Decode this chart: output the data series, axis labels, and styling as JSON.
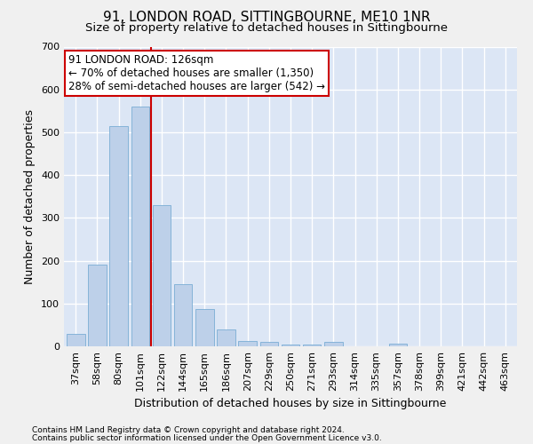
{
  "title": "91, LONDON ROAD, SITTINGBOURNE, ME10 1NR",
  "subtitle": "Size of property relative to detached houses in Sittingbourne",
  "xlabel": "Distribution of detached houses by size in Sittingbourne",
  "ylabel": "Number of detached properties",
  "footer1": "Contains HM Land Registry data © Crown copyright and database right 2024.",
  "footer2": "Contains public sector information licensed under the Open Government Licence v3.0.",
  "categories": [
    "37sqm",
    "58sqm",
    "80sqm",
    "101sqm",
    "122sqm",
    "144sqm",
    "165sqm",
    "186sqm",
    "207sqm",
    "229sqm",
    "250sqm",
    "271sqm",
    "293sqm",
    "314sqm",
    "335sqm",
    "357sqm",
    "378sqm",
    "399sqm",
    "421sqm",
    "442sqm",
    "463sqm"
  ],
  "values": [
    30,
    190,
    515,
    560,
    330,
    145,
    87,
    40,
    13,
    10,
    5,
    5,
    10,
    0,
    0,
    7,
    0,
    0,
    0,
    0,
    0
  ],
  "bar_color": "#bdd0e9",
  "bar_edge_color": "#7aadd4",
  "figure_bg": "#f0f0f0",
  "axes_bg": "#dce6f5",
  "grid_color": "#ffffff",
  "vline_color": "#cc0000",
  "vline_x_index": 3.5,
  "annotation_text": "91 LONDON ROAD: 126sqm\n← 70% of detached houses are smaller (1,350)\n28% of semi-detached houses are larger (542) →",
  "annotation_box_facecolor": "#ffffff",
  "annotation_box_edgecolor": "#cc0000",
  "ylim": [
    0,
    700
  ],
  "yticks": [
    0,
    100,
    200,
    300,
    400,
    500,
    600,
    700
  ],
  "title_fontsize": 11,
  "subtitle_fontsize": 9.5,
  "xlabel_fontsize": 9,
  "ylabel_fontsize": 9,
  "tick_fontsize": 8,
  "annotation_fontsize": 8.5,
  "footer_fontsize": 6.5
}
